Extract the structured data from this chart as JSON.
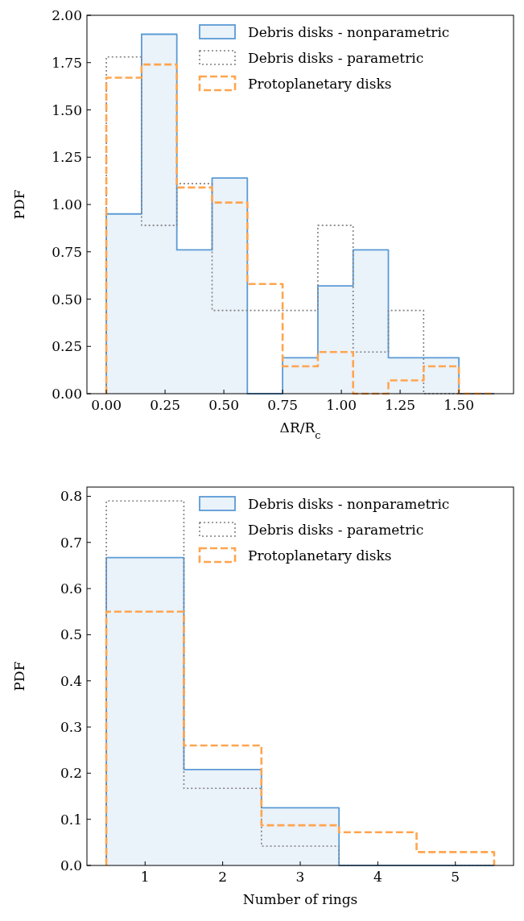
{
  "chart_data": [
    {
      "type": "histogram",
      "xlabel": "ΔR/R$_{c}$",
      "ylabel": "PDF",
      "bins": [
        0,
        0.15,
        0.3,
        0.45,
        0.6,
        0.75,
        0.9,
        1.05,
        1.2,
        1.35,
        1.5,
        1.65
      ],
      "series": [
        {
          "name": "Debris disks - nonparametric",
          "color": "#5b9bd5",
          "line_style": "solid",
          "values": [
            0.95,
            1.9,
            0.76,
            1.14,
            0,
            0.19,
            0.57,
            0.76,
            0.19,
            0.19,
            0
          ]
        },
        {
          "name": "Debris disks - parametric",
          "color": "#808080",
          "line_style": "dotted",
          "values": [
            1.78,
            0.89,
            1.11,
            0.44,
            0.44,
            0.44,
            0.89,
            0.22,
            0.44,
            0,
            0
          ]
        },
        {
          "name": "Protoplanetary disks",
          "color": "#ffa54f",
          "line_style": "dashed",
          "values": [
            1.67,
            1.74,
            1.09,
            1.01,
            0.58,
            0.145,
            0.22,
            0,
            0.07,
            0.145,
            0
          ]
        }
      ],
      "xlim": [
        -0.0825,
        1.7325
      ],
      "ylim": [
        0,
        2
      ],
      "xticks": [
        {
          "value": 0,
          "label": "0.00"
        },
        {
          "value": 0.25,
          "label": "0.25"
        },
        {
          "value": 0.5,
          "label": "0.50"
        },
        {
          "value": 0.75,
          "label": "0.75"
        },
        {
          "value": 1,
          "label": "1.00"
        },
        {
          "value": 1.25,
          "label": "1.25"
        },
        {
          "value": 1.5,
          "label": "1.50"
        }
      ],
      "yticks": [
        {
          "value": 0,
          "label": "0.00"
        },
        {
          "value": 0.25,
          "label": "0.25"
        },
        {
          "value": 0.5,
          "label": "0.50"
        },
        {
          "value": 0.75,
          "label": "0.75"
        },
        {
          "value": 1,
          "label": "1.00"
        },
        {
          "value": 1.25,
          "label": "1.25"
        },
        {
          "value": 1.5,
          "label": "1.50"
        },
        {
          "value": 1.75,
          "label": "1.75"
        },
        {
          "value": 2,
          "label": "2.00"
        }
      ],
      "legend": "top right"
    },
    {
      "type": "histogram",
      "xlabel": "Number of rings",
      "ylabel": "PDF",
      "bins": [
        0.5,
        1.5,
        2.5,
        3.5,
        4.5,
        5.5
      ],
      "series": [
        {
          "name": "Debris disks - nonparametric",
          "color": "#5b9bd5",
          "line_style": "solid",
          "values": [
            0.667,
            0.208,
            0.125,
            0,
            0
          ]
        },
        {
          "name": "Debris disks - parametric",
          "color": "#808080",
          "line_style": "dotted",
          "values": [
            0.79,
            0.167,
            0.042,
            0,
            0
          ]
        },
        {
          "name": "Protoplanetary disks",
          "color": "#ffa54f",
          "line_style": "dashed",
          "values": [
            0.55,
            0.26,
            0.087,
            0.072,
            0.029
          ]
        }
      ],
      "xlim": [
        0.25,
        5.75
      ],
      "ylim": [
        0,
        0.82
      ],
      "xticks": [
        1,
        2,
        3,
        4,
        5
      ],
      "yticks": [
        {
          "value": 0,
          "label": "0.0"
        },
        {
          "value": 0.1,
          "label": "0.1"
        },
        {
          "value": 0.2,
          "label": "0.2"
        },
        {
          "value": 0.3,
          "label": "0.3"
        },
        {
          "value": 0.4,
          "label": "0.4"
        },
        {
          "value": 0.5,
          "label": "0.5"
        },
        {
          "value": 0.6,
          "label": "0.6"
        },
        {
          "value": 0.7,
          "label": "0.7"
        },
        {
          "value": 0.8,
          "label": "0.8"
        }
      ],
      "legend": "top right"
    }
  ]
}
